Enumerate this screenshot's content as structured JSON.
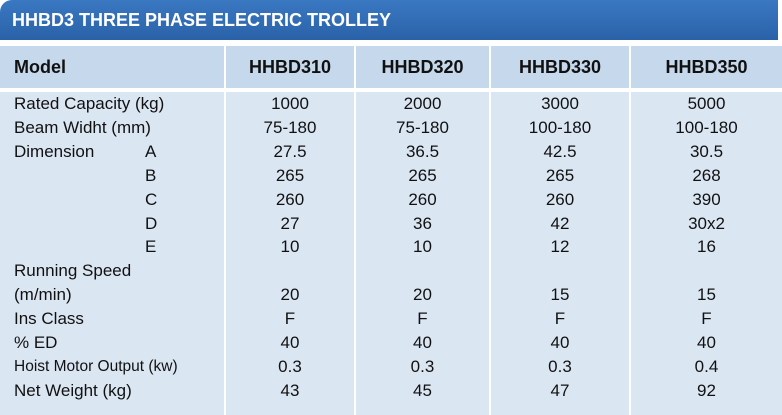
{
  "title": "HHBD3 THREE PHASE ELECTRIC TROLLEY",
  "header": [
    "Model",
    "HHBD310",
    "HHBD320",
    "HHBD330",
    "HHBD350"
  ],
  "rows": [
    {
      "label": "Rated Capacity (kg)",
      "values": [
        "1000",
        "2000",
        "3000",
        "5000"
      ]
    },
    {
      "label": "Beam Widht (mm)",
      "values": [
        "75-180",
        "75-180",
        "100-180",
        "100-180"
      ]
    },
    {
      "label": "Dimension",
      "sub": "A",
      "values": [
        "27.5",
        "36.5",
        "42.5",
        "30.5"
      ]
    },
    {
      "sub": "B",
      "values": [
        "265",
        "265",
        "265",
        "268"
      ]
    },
    {
      "sub": "C",
      "values": [
        "260",
        "260",
        "260",
        "390"
      ]
    },
    {
      "sub": "D",
      "values": [
        "27",
        "36",
        "42",
        "30x2"
      ]
    },
    {
      "sub": "E",
      "values": [
        "10",
        "10",
        "12",
        "16"
      ]
    },
    {
      "label": "Running Speed"
    },
    {
      "label": "(m/min)",
      "values": [
        "20",
        "20",
        "15",
        "15"
      ]
    },
    {
      "label": "Ins Class",
      "values": [
        "F",
        "F",
        "F",
        "F"
      ]
    },
    {
      "label": "% ED",
      "values": [
        "40",
        "40",
        "40",
        "40"
      ]
    },
    {
      "label": "Hoist Motor Output (kw)",
      "values": [
        "0.3",
        "0.3",
        "0.3",
        "0.4"
      ]
    },
    {
      "label": "Net Weight (kg)",
      "values": [
        "43",
        "45",
        "47",
        "92"
      ]
    }
  ]
}
